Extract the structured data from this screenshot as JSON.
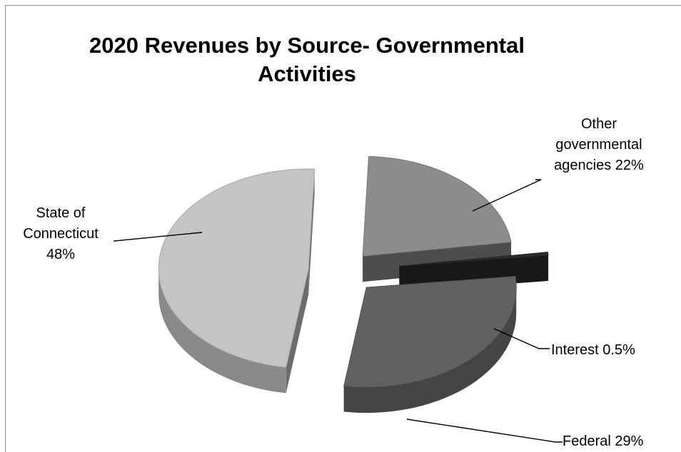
{
  "chart_data": {
    "type": "pie",
    "title": "2020 Revenues by Source-  Governmental\nActivities",
    "slices": [
      {
        "name": "State of Connecticut",
        "value": 48,
        "label": "State of\nConnecticut\n48%",
        "color": "#c4c4c4"
      },
      {
        "name": "Other governmental agencies",
        "value": 22,
        "label": "Other\ngovernmental\nagencies  22%",
        "color": "#8c8c8c"
      },
      {
        "name": "Interest",
        "value": 0.5,
        "label": "Interest  0.5%",
        "color": "#2b2b2b"
      },
      {
        "name": "Federal",
        "value": 29,
        "label": "Federal 29%",
        "color": "#616161"
      }
    ],
    "style": "3d-exploded",
    "legend": "none"
  }
}
